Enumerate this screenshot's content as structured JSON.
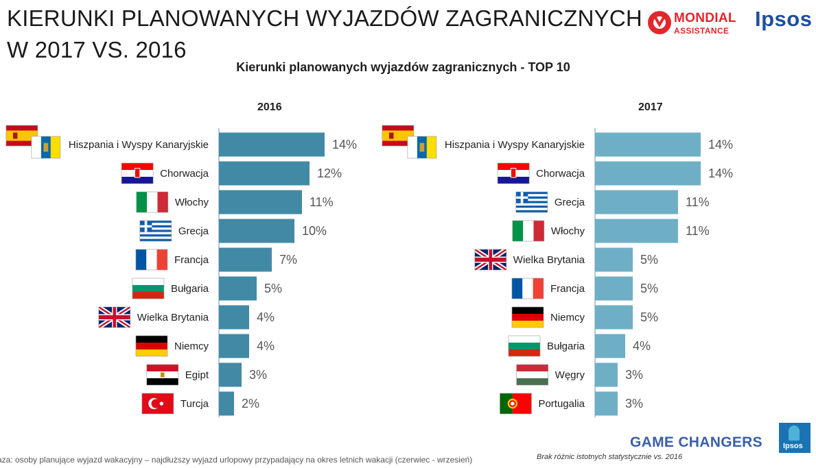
{
  "page": {
    "title_line1": "KIERUNKI PLANOWANYCH WYJAZDÓW ZAGRANICZNYCH",
    "title_line2": "W 2017 VS. 2016",
    "subtitle": "Kierunki planowanych wyjazdów zagranicznych - TOP 10",
    "logo_mondial": "MONDIAL",
    "logo_mondial_sub": "ASSISTANCE",
    "logo_ipsos": "Ipsos",
    "footer_left": "aza: osoby planujące wyjazd wakacyjny – najdłuższy wyjazd urlopowy przypadający na okres letnich wakacji (czerwiec - wrzesień)",
    "footer_right": "Brak różnic istotnych statystycznie vs. 2016",
    "game_changers": "GAME CHANGERS",
    "badge_text": "Ipsos"
  },
  "colors": {
    "bar_2016": "#4289a6",
    "bar_2017": "#6fafc6",
    "axis": "#7fa8bb",
    "label": "#1e1e1e",
    "value": "#555555"
  },
  "chart_data": [
    {
      "type": "bar",
      "orientation": "horizontal",
      "title": "2016",
      "categories": [
        "Hiszpania i Wyspy Kanaryjskie",
        "Chorwacja",
        "Włochy",
        "Grecja",
        "Francja",
        "Bułgaria",
        "Wielka Brytania",
        "Niemcy",
        "Egipt",
        "Turcja"
      ],
      "values": [
        14,
        12,
        11,
        10,
        7,
        5,
        4,
        4,
        3,
        2
      ],
      "value_labels": [
        "14%",
        "12%",
        "11%",
        "10%",
        "7%",
        "5%",
        "4%",
        "4%",
        "3%",
        "2%"
      ],
      "flags": [
        [
          "spain-flag",
          "canary-flag"
        ],
        [
          "croatia-flag"
        ],
        [
          "italy-flag"
        ],
        [
          "greece-flag"
        ],
        [
          "france-flag"
        ],
        [
          "bulgaria-flag"
        ],
        [
          "uk-flag"
        ],
        [
          "germany-flag"
        ],
        [
          "egypt-flag"
        ],
        [
          "turkey-flag"
        ]
      ],
      "unit": "%",
      "xlim": [
        0,
        20
      ]
    },
    {
      "type": "bar",
      "orientation": "horizontal",
      "title": "2017",
      "categories": [
        "Hiszpania i Wyspy Kanaryjskie",
        "Chorwacja",
        "Grecja",
        "Włochy",
        "Wielka Brytania",
        "Francja",
        "Niemcy",
        "Bułgaria",
        "Węgry",
        "Portugalia"
      ],
      "values": [
        14,
        14,
        11,
        11,
        5,
        5,
        5,
        4,
        3,
        3
      ],
      "value_labels": [
        "14%",
        "14%",
        "11%",
        "11%",
        "5%",
        "5%",
        "5%",
        "4%",
        "3%",
        "3%"
      ],
      "flags": [
        [
          "spain-flag",
          "canary-flag"
        ],
        [
          "croatia-flag"
        ],
        [
          "greece-flag"
        ],
        [
          "italy-flag"
        ],
        [
          "uk-flag"
        ],
        [
          "france-flag"
        ],
        [
          "germany-flag"
        ],
        [
          "bulgaria-flag"
        ],
        [
          "hungary-flag"
        ],
        [
          "portugal-flag"
        ]
      ],
      "unit": "%",
      "xlim": [
        0,
        20
      ]
    }
  ]
}
